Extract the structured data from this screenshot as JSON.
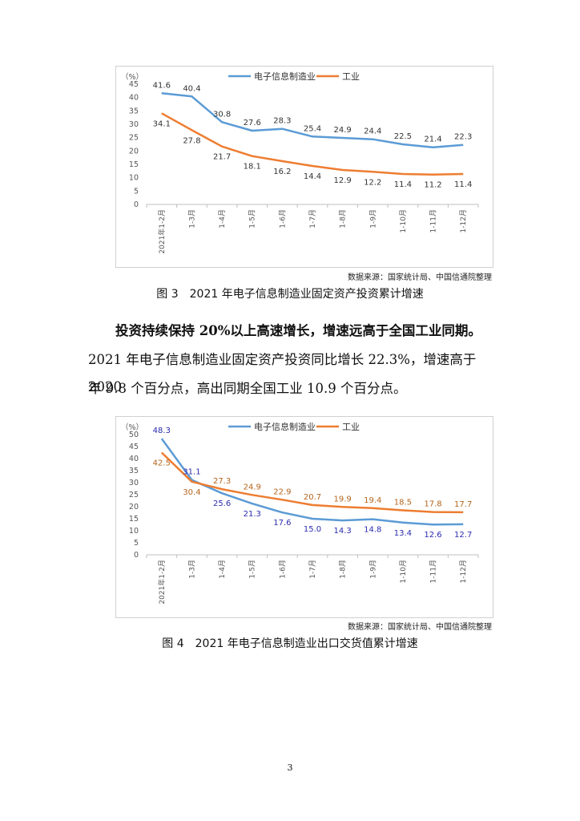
{
  "chart_data": [
    {
      "type": "line",
      "unit_label": "（%）",
      "categories": [
        "2021年1-2月",
        "1-3月",
        "1-4月",
        "1-5月",
        "1-6月",
        "1-7月",
        "1-8月",
        "1-9月",
        "1-10月",
        "1-11月",
        "1-12月"
      ],
      "ylim": [
        0,
        45
      ],
      "yticks": [
        0,
        5,
        10,
        15,
        20,
        25,
        30,
        35,
        40,
        45
      ],
      "grid": false,
      "legend_position": "top",
      "series": [
        {
          "name": "电子信息制造业",
          "color": "#5b9bd5",
          "label_color": "#333333",
          "values": [
            41.6,
            40.4,
            30.8,
            27.6,
            28.3,
            25.4,
            24.9,
            24.4,
            22.5,
            21.4,
            22.3
          ]
        },
        {
          "name": "工业",
          "color": "#ed7d31",
          "label_color": "#333333",
          "values": [
            34.1,
            27.8,
            21.7,
            18.1,
            16.2,
            14.4,
            12.9,
            12.2,
            11.4,
            11.2,
            11.4
          ]
        }
      ]
    },
    {
      "type": "line",
      "unit_label": "（%）",
      "categories": [
        "2021年1-2月",
        "1-3月",
        "1-4月",
        "1-5月",
        "1-6月",
        "1-7月",
        "1-8月",
        "1-9月",
        "1-10月",
        "1-11月",
        "1-12月"
      ],
      "ylim": [
        0,
        50
      ],
      "yticks": [
        0,
        5,
        10,
        15,
        20,
        25,
        30,
        35,
        40,
        45,
        50
      ],
      "grid": false,
      "legend_position": "top",
      "series": [
        {
          "name": "电子信息制造业",
          "color": "#5b9bd5",
          "label_color": "#2b2bb0",
          "values": [
            48.3,
            31.1,
            25.6,
            21.3,
            17.6,
            15.0,
            14.3,
            14.8,
            13.4,
            12.6,
            12.7
          ]
        },
        {
          "name": "工业",
          "color": "#ed7d31",
          "label_color": "#b5651d",
          "values": [
            42.5,
            30.4,
            27.3,
            24.9,
            22.9,
            20.7,
            19.9,
            19.4,
            18.5,
            17.8,
            17.7
          ]
        }
      ]
    }
  ],
  "chart1_source": "数据来源：国家统计局、中国信通院整理",
  "chart1_caption": "图 3　2021 年电子信息制造业固定资产投资累计增速",
  "paragraph_bold": "投资持续保持 20%以上高速增长，增速远高于全国工业同期。",
  "paragraph_line1": "2021 年电子信息制造业固定资产投资同比增长 22.3%，增速高于 2020",
  "paragraph_line2": "年 9.8 个百分点，高出同期全国工业 10.9 个百分点。",
  "chart2_source": "数据来源：国家统计局、中国信通院整理",
  "chart2_caption": "图 4　2021 年电子信息制造业出口交货值累计增速",
  "page_number": "3"
}
